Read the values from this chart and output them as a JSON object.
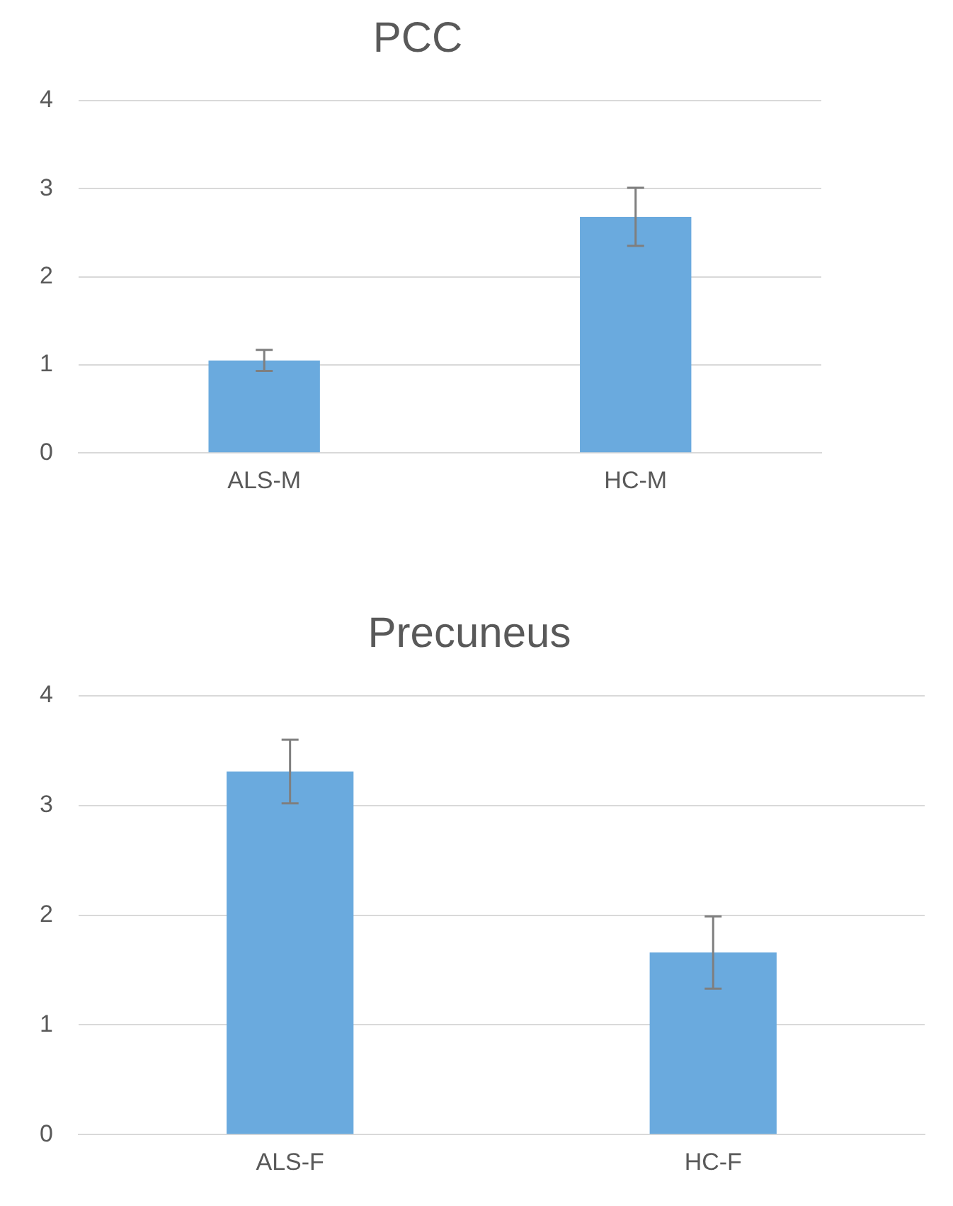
{
  "chart_data": [
    {
      "type": "bar",
      "title": "PCC",
      "categories": [
        "ALS-M",
        "HC-M"
      ],
      "values": [
        1.05,
        2.68
      ],
      "errors": [
        0.12,
        0.33
      ],
      "color": "#6aaade",
      "ylim": [
        0,
        4
      ],
      "yticks": [
        0,
        1,
        2,
        3,
        4
      ],
      "grid": "y",
      "legend": false
    },
    {
      "type": "bar",
      "title": "Precuneus",
      "categories": [
        "ALS-F",
        "HC-F"
      ],
      "values": [
        3.31,
        1.66
      ],
      "errors": [
        0.29,
        0.33
      ],
      "color": "#6aaade",
      "ylim": [
        0,
        4
      ],
      "yticks": [
        0,
        1,
        2,
        3,
        4
      ],
      "grid": "y",
      "legend": false
    }
  ]
}
